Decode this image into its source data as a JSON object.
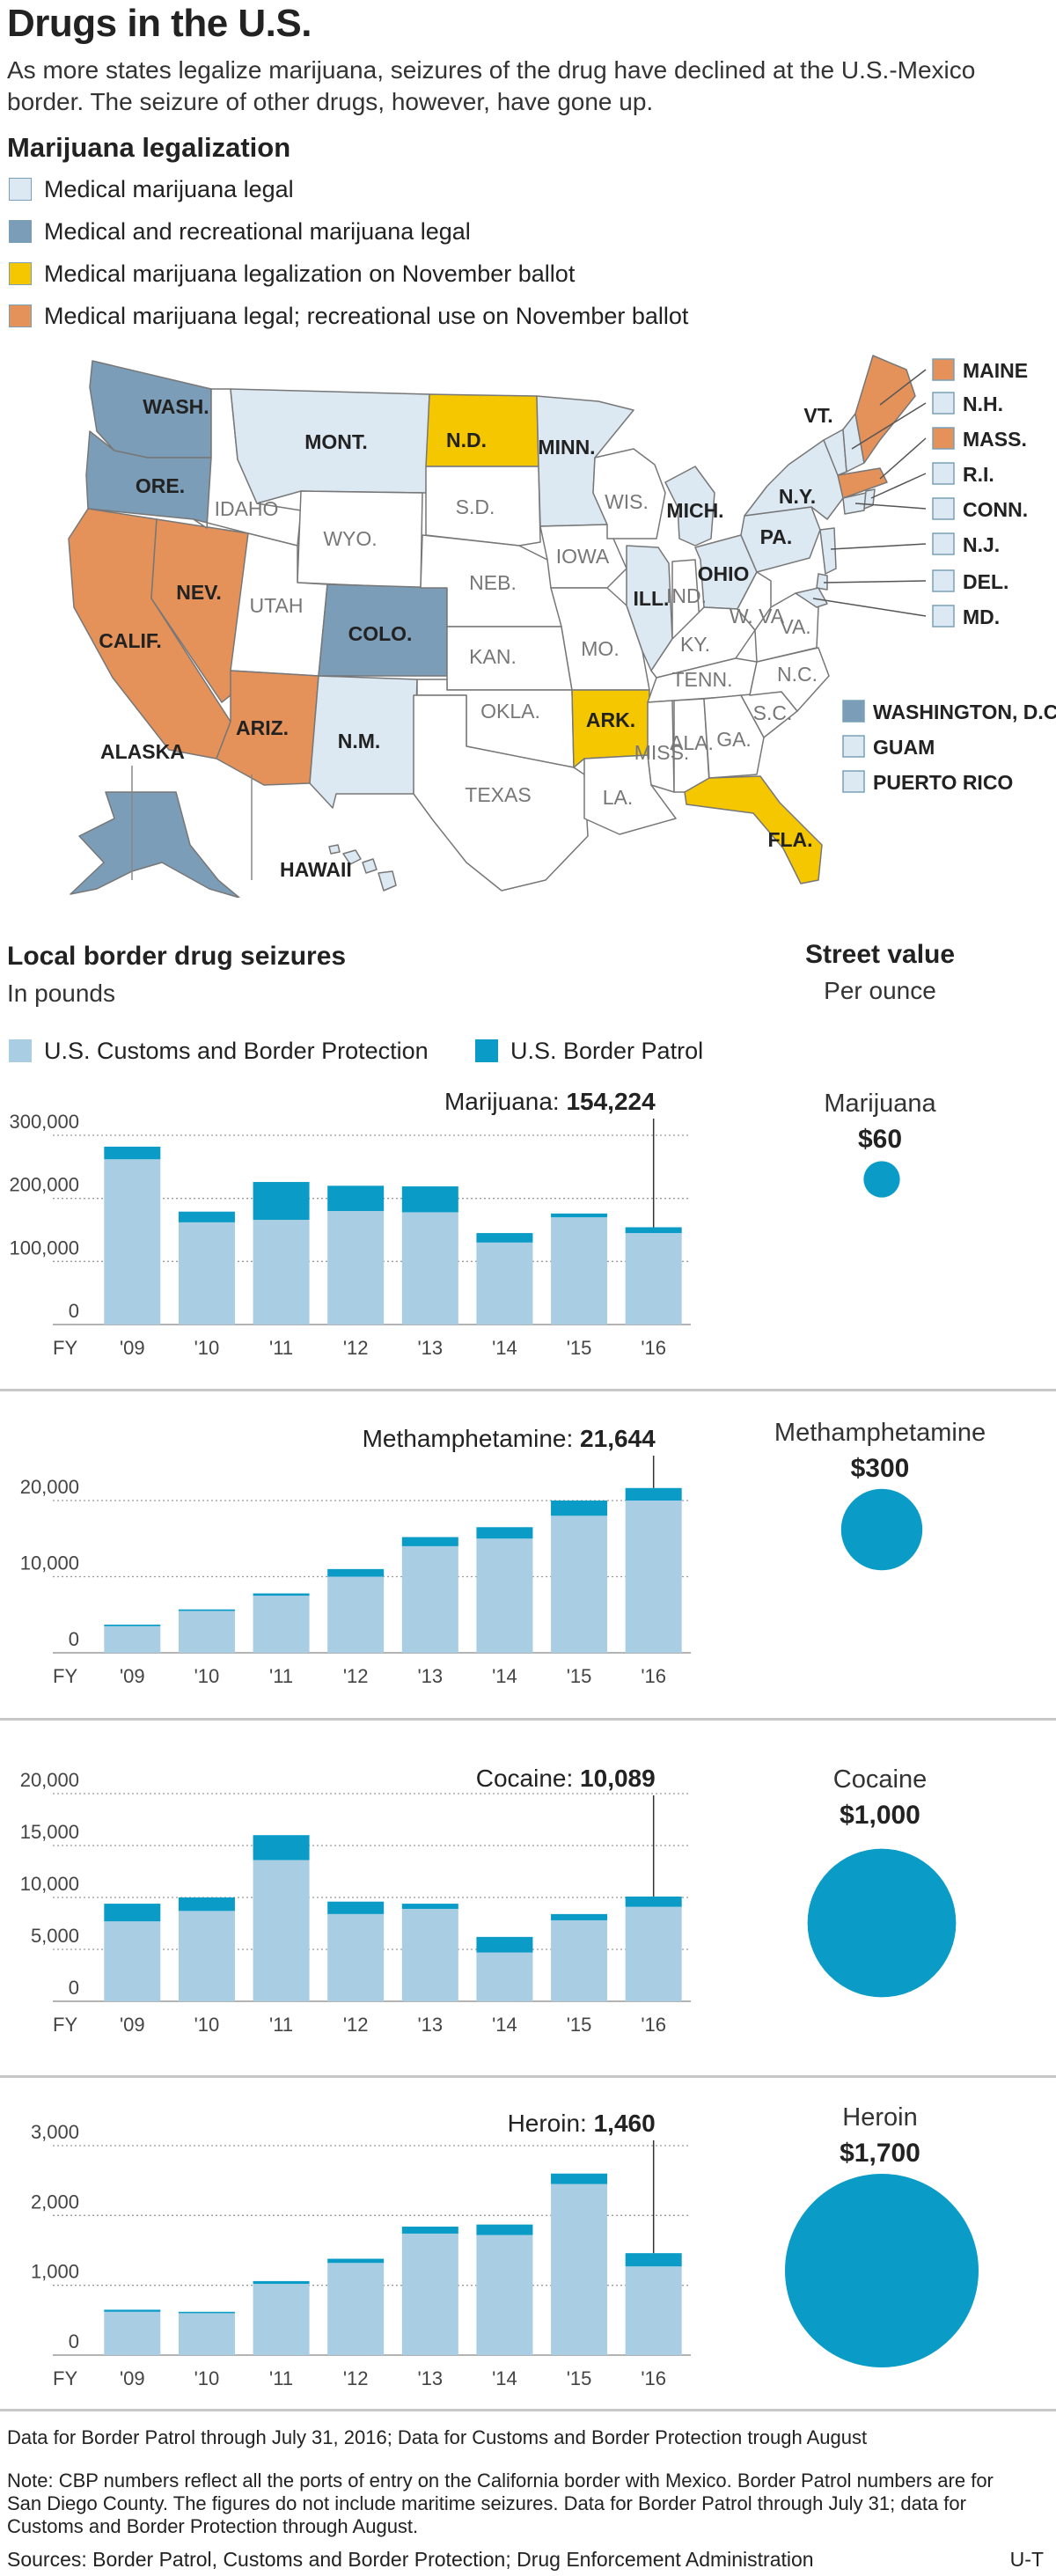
{
  "page": {
    "title": "Drugs in the U.S.",
    "subtitle": "As more states legalize marijuana, seizures of the drug have declined at the U.S.-Mexico border. The seizure of other drugs, however, have gone up.",
    "credit": "U-T",
    "note1": "Data for Border Patrol through July 31, 2016; Data for Customs and Border Protection trough August",
    "note2": "Note: CBP numbers reflect all the ports of entry on the California border with Mexico. Border Patrol numbers are for San Diego County. The figures do not include maritime seizures. Data for Border Patrol through July 31; data for Customs and Border Protection through August.",
    "sources": "Sources: Border Patrol, Customs and Border Protection; Drug Enforcement Administration"
  },
  "legalization": {
    "heading": "Marijuana legalization",
    "legend": [
      {
        "label": "Medical marijuana legal",
        "color": "#dce8f2"
      },
      {
        "label": "Medical and recreational marijuana legal",
        "color": "#7b9db7"
      },
      {
        "label": "Medical marijuana legalization on November ballot",
        "color": "#f5c700"
      },
      {
        "label": "Medical marijuana legal; recreational use on November ballot",
        "color": "#e4925a"
      }
    ],
    "status_colors": {
      "medical": "#dce8f2",
      "recreational": "#7b9db7",
      "ballot_medical": "#f5c700",
      "ballot_recreational": "#e4925a",
      "none": "#ffffff"
    },
    "states": [
      {
        "name": "WASH.",
        "status": "recreational"
      },
      {
        "name": "ORE.",
        "status": "recreational"
      },
      {
        "name": "CALIF.",
        "status": "ballot_recreational"
      },
      {
        "name": "NEV.",
        "status": "ballot_recreational"
      },
      {
        "name": "IDAHO",
        "status": "none"
      },
      {
        "name": "MONT.",
        "status": "medical"
      },
      {
        "name": "WYO.",
        "status": "none"
      },
      {
        "name": "UTAH",
        "status": "none"
      },
      {
        "name": "ARIZ.",
        "status": "ballot_recreational"
      },
      {
        "name": "COLO.",
        "status": "recreational"
      },
      {
        "name": "N.M.",
        "status": "medical"
      },
      {
        "name": "N.D.",
        "status": "ballot_medical"
      },
      {
        "name": "S.D.",
        "status": "none"
      },
      {
        "name": "NEB.",
        "status": "none"
      },
      {
        "name": "KAN.",
        "status": "none"
      },
      {
        "name": "OKLA.",
        "status": "none"
      },
      {
        "name": "TEXAS",
        "status": "none"
      },
      {
        "name": "MINN.",
        "status": "medical"
      },
      {
        "name": "IOWA",
        "status": "none"
      },
      {
        "name": "MO.",
        "status": "none"
      },
      {
        "name": "ARK.",
        "status": "ballot_medical"
      },
      {
        "name": "LA.",
        "status": "none"
      },
      {
        "name": "WIS.",
        "status": "none"
      },
      {
        "name": "ILL.",
        "status": "medical"
      },
      {
        "name": "MICH.",
        "status": "medical"
      },
      {
        "name": "IND.",
        "status": "none"
      },
      {
        "name": "OHIO",
        "status": "medical"
      },
      {
        "name": "KY.",
        "status": "none"
      },
      {
        "name": "TENN.",
        "status": "none"
      },
      {
        "name": "MISS.",
        "status": "none"
      },
      {
        "name": "ALA.",
        "status": "none"
      },
      {
        "name": "GA.",
        "status": "none"
      },
      {
        "name": "FLA.",
        "status": "ballot_medical"
      },
      {
        "name": "S.C.",
        "status": "none"
      },
      {
        "name": "N.C.",
        "status": "none"
      },
      {
        "name": "VA.",
        "status": "none"
      },
      {
        "name": "W. VA",
        "status": "none"
      },
      {
        "name": "PA.",
        "status": "medical"
      },
      {
        "name": "N.Y.",
        "status": "medical"
      },
      {
        "name": "VT.",
        "status": "medical"
      },
      {
        "name": "ALASKA",
        "status": "recreational"
      },
      {
        "name": "HAWAII",
        "status": "medical"
      }
    ],
    "callouts": [
      {
        "name": "MAINE",
        "status": "ballot_recreational"
      },
      {
        "name": "N.H.",
        "status": "medical"
      },
      {
        "name": "MASS.",
        "status": "ballot_recreational"
      },
      {
        "name": "R.I.",
        "status": "medical"
      },
      {
        "name": "CONN.",
        "status": "medical"
      },
      {
        "name": "N.J.",
        "status": "medical"
      },
      {
        "name": "DEL.",
        "status": "medical"
      },
      {
        "name": "MD.",
        "status": "medical"
      }
    ],
    "territories": [
      {
        "name": "WASHINGTON, D.C.",
        "status": "recreational"
      },
      {
        "name": "GUAM",
        "status": "medical"
      },
      {
        "name": "PUERTO RICO",
        "status": "medical"
      }
    ]
  },
  "seizures": {
    "heading": "Local border drug seizures",
    "unit": "In pounds",
    "street_heading": "Street value",
    "street_unit": "Per ounce",
    "legend": [
      {
        "label": "U.S. Customs and Border Protection",
        "color": "#a9cde2"
      },
      {
        "label": "U.S. Border Patrol",
        "color": "#0a9cc7"
      }
    ],
    "bubble_color": "#0a9cc7"
  },
  "chart_data": [
    {
      "type": "bar",
      "stacked": true,
      "drug": "Marijuana",
      "label_prefix": "Marijuana:",
      "label_value": "154,224",
      "categories": [
        "FY '09",
        "'10",
        "'11",
        "'12",
        "'13",
        "'14",
        "'15",
        "'16"
      ],
      "series": [
        {
          "name": "U.S. Customs and Border Protection",
          "values": [
            262000,
            162000,
            166000,
            180000,
            178000,
            130000,
            170000,
            145000
          ]
        },
        {
          "name": "U.S. Border Patrol",
          "values": [
            20000,
            17000,
            60000,
            40000,
            41000,
            15000,
            6000,
            9224
          ]
        }
      ],
      "yticks": [
        "0",
        "100,000",
        "200,000",
        "300,000"
      ],
      "ylim": [
        0,
        300000
      ],
      "street_value": {
        "label": "$60",
        "amount": 60
      }
    },
    {
      "type": "bar",
      "stacked": true,
      "drug": "Methamphetamine",
      "label_prefix": "Methamphetamine:",
      "label_value": "21,644",
      "categories": [
        "FY '09",
        "'10",
        "'11",
        "'12",
        "'13",
        "'14",
        "'15",
        "'16"
      ],
      "series": [
        {
          "name": "U.S. Customs and Border Protection",
          "values": [
            3500,
            5500,
            7500,
            10000,
            14000,
            15000,
            18000,
            20000
          ]
        },
        {
          "name": "U.S. Border Patrol",
          "values": [
            200,
            200,
            300,
            1000,
            1200,
            1500,
            2000,
            1644
          ]
        }
      ],
      "yticks": [
        "0",
        "10,000",
        "20,000"
      ],
      "ylim": [
        0,
        20000
      ],
      "street_value": {
        "label": "$300",
        "amount": 300
      }
    },
    {
      "type": "bar",
      "stacked": true,
      "drug": "Cocaine",
      "label_prefix": "Cocaine:",
      "label_value": "10,089",
      "categories": [
        "FY '09",
        "'10",
        "'11",
        "'12",
        "'13",
        "'14",
        "'15",
        "'16"
      ],
      "series": [
        {
          "name": "U.S. Customs and Border Protection",
          "values": [
            7700,
            8700,
            13600,
            8400,
            8900,
            4700,
            7800,
            9100
          ]
        },
        {
          "name": "U.S. Border Patrol",
          "values": [
            1700,
            1300,
            2400,
            1200,
            500,
            1500,
            600,
            989
          ]
        }
      ],
      "yticks": [
        "0",
        "5,000",
        "10,000",
        "15,000",
        "20,000"
      ],
      "ylim": [
        0,
        20000
      ],
      "street_value": {
        "label": "$1,000",
        "amount": 1000
      }
    },
    {
      "type": "bar",
      "stacked": true,
      "drug": "Heroin",
      "label_prefix": "Heroin:",
      "label_value": "1,460",
      "categories": [
        "FY '09",
        "'10",
        "'11",
        "'12",
        "'13",
        "'14",
        "'15",
        "'16"
      ],
      "series": [
        {
          "name": "U.S. Customs and Border Protection",
          "values": [
            620,
            600,
            1020,
            1320,
            1740,
            1720,
            2450,
            1270
          ]
        },
        {
          "name": "U.S. Border Patrol",
          "values": [
            30,
            20,
            40,
            60,
            100,
            150,
            150,
            190
          ]
        }
      ],
      "yticks": [
        "0",
        "1,000",
        "2,000",
        "3,000"
      ],
      "ylim": [
        0,
        3000
      ],
      "street_value": {
        "label": "$1,700",
        "amount": 1700
      }
    }
  ]
}
